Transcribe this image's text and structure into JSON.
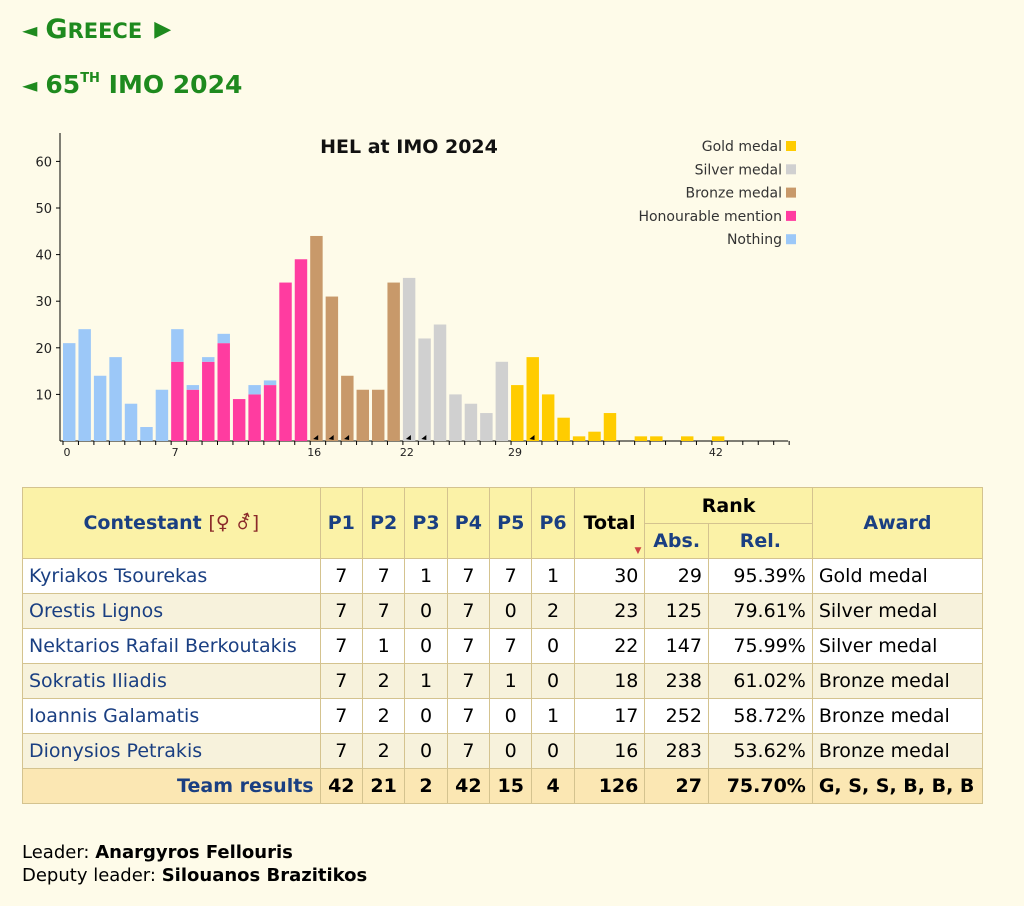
{
  "nav": {
    "country_arrow_left": "◄",
    "country_first": "G",
    "country_rest": "reece",
    "country_arrow_right": "▶",
    "olympiad_arrow_left": "◄",
    "olympiad_ordinal": "65",
    "olympiad_suffix": "th",
    "olympiad_name": "IMO 2024"
  },
  "chart_data": {
    "type": "bar",
    "title": "HEL at IMO 2024",
    "xlabel": "",
    "ylabel": "",
    "x_tick_labels": [
      "0",
      "7",
      "16",
      "22",
      "29",
      "42"
    ],
    "y_tick_labels": [
      "10",
      "20",
      "30",
      "40",
      "50",
      "60"
    ],
    "xlim": [
      0,
      47
    ],
    "ylim": [
      0,
      63
    ],
    "legend_position": "top-right",
    "legend": [
      {
        "name": "Gold medal",
        "color": "#ffcc00"
      },
      {
        "name": "Silver medal",
        "color": "#d0d0d0"
      },
      {
        "name": "Bronze medal",
        "color": "#c8996a"
      },
      {
        "name": "Honourable mention",
        "color": "#ff3ca0"
      },
      {
        "name": "Nothing",
        "color": "#9cc8f8"
      }
    ],
    "colors": {
      "gold": "#ffcc00",
      "silver": "#d0d0d0",
      "bronze": "#c8996a",
      "hm": "#ff3ca0",
      "nothing": "#9cc8f8"
    },
    "bars": [
      {
        "x": 0,
        "segments": [
          {
            "cat": "nothing",
            "v": 21
          }
        ]
      },
      {
        "x": 1,
        "segments": [
          {
            "cat": "nothing",
            "v": 24
          }
        ]
      },
      {
        "x": 2,
        "segments": [
          {
            "cat": "nothing",
            "v": 14
          }
        ]
      },
      {
        "x": 3,
        "segments": [
          {
            "cat": "nothing",
            "v": 18
          }
        ]
      },
      {
        "x": 4,
        "segments": [
          {
            "cat": "nothing",
            "v": 8
          }
        ]
      },
      {
        "x": 5,
        "segments": [
          {
            "cat": "nothing",
            "v": 3
          }
        ]
      },
      {
        "x": 6,
        "segments": [
          {
            "cat": "nothing",
            "v": 11
          }
        ]
      },
      {
        "x": 7,
        "segments": [
          {
            "cat": "hm",
            "v": 17
          },
          {
            "cat": "nothing",
            "v": 7
          }
        ]
      },
      {
        "x": 8,
        "segments": [
          {
            "cat": "hm",
            "v": 11
          },
          {
            "cat": "nothing",
            "v": 1
          }
        ]
      },
      {
        "x": 9,
        "segments": [
          {
            "cat": "hm",
            "v": 17
          },
          {
            "cat": "nothing",
            "v": 1
          }
        ]
      },
      {
        "x": 10,
        "segments": [
          {
            "cat": "hm",
            "v": 21
          },
          {
            "cat": "nothing",
            "v": 2
          }
        ]
      },
      {
        "x": 11,
        "segments": [
          {
            "cat": "hm",
            "v": 9
          }
        ]
      },
      {
        "x": 12,
        "segments": [
          {
            "cat": "hm",
            "v": 10
          },
          {
            "cat": "nothing",
            "v": 2
          }
        ]
      },
      {
        "x": 13,
        "segments": [
          {
            "cat": "hm",
            "v": 12
          },
          {
            "cat": "nothing",
            "v": 1
          }
        ]
      },
      {
        "x": 14,
        "segments": [
          {
            "cat": "hm",
            "v": 34
          }
        ]
      },
      {
        "x": 15,
        "segments": [
          {
            "cat": "hm",
            "v": 39
          }
        ]
      },
      {
        "x": 16,
        "segments": [
          {
            "cat": "bronze",
            "v": 44
          }
        ]
      },
      {
        "x": 17,
        "segments": [
          {
            "cat": "bronze",
            "v": 31
          }
        ]
      },
      {
        "x": 18,
        "segments": [
          {
            "cat": "bronze",
            "v": 14
          }
        ]
      },
      {
        "x": 19,
        "segments": [
          {
            "cat": "bronze",
            "v": 11
          }
        ]
      },
      {
        "x": 20,
        "segments": [
          {
            "cat": "bronze",
            "v": 11
          }
        ]
      },
      {
        "x": 21,
        "segments": [
          {
            "cat": "bronze",
            "v": 34
          }
        ]
      },
      {
        "x": 22,
        "segments": [
          {
            "cat": "silver",
            "v": 35
          }
        ]
      },
      {
        "x": 23,
        "segments": [
          {
            "cat": "silver",
            "v": 22
          }
        ]
      },
      {
        "x": 24,
        "segments": [
          {
            "cat": "silver",
            "v": 25
          }
        ]
      },
      {
        "x": 25,
        "segments": [
          {
            "cat": "silver",
            "v": 10
          }
        ]
      },
      {
        "x": 26,
        "segments": [
          {
            "cat": "silver",
            "v": 8
          }
        ]
      },
      {
        "x": 27,
        "segments": [
          {
            "cat": "silver",
            "v": 6
          }
        ]
      },
      {
        "x": 28,
        "segments": [
          {
            "cat": "silver",
            "v": 17
          }
        ]
      },
      {
        "x": 29,
        "segments": [
          {
            "cat": "gold",
            "v": 12
          }
        ]
      },
      {
        "x": 30,
        "segments": [
          {
            "cat": "gold",
            "v": 18
          }
        ]
      },
      {
        "x": 31,
        "segments": [
          {
            "cat": "gold",
            "v": 10
          }
        ]
      },
      {
        "x": 32,
        "segments": [
          {
            "cat": "gold",
            "v": 5
          }
        ]
      },
      {
        "x": 33,
        "segments": [
          {
            "cat": "gold",
            "v": 1
          }
        ]
      },
      {
        "x": 34,
        "segments": [
          {
            "cat": "gold",
            "v": 2
          }
        ]
      },
      {
        "x": 35,
        "segments": [
          {
            "cat": "gold",
            "v": 6
          }
        ]
      },
      {
        "x": 37,
        "segments": [
          {
            "cat": "gold",
            "v": 1
          }
        ]
      },
      {
        "x": 38,
        "segments": [
          {
            "cat": "gold",
            "v": 1
          }
        ]
      },
      {
        "x": 40,
        "segments": [
          {
            "cat": "gold",
            "v": 1
          }
        ]
      },
      {
        "x": 42,
        "segments": [
          {
            "cat": "gold",
            "v": 1
          }
        ]
      }
    ],
    "team_markers_x": [
      16,
      17,
      18,
      22,
      23,
      30
    ]
  },
  "table": {
    "header": {
      "contestant": "Contestant",
      "gender_open": "[",
      "gender_symbols": "♀ ⚦",
      "gender_close": "]",
      "problems": [
        "P1",
        "P2",
        "P3",
        "P4",
        "P5",
        "P6"
      ],
      "total": "Total",
      "sort_indicator": "▼",
      "rank": "Rank",
      "abs": "Abs.",
      "rel": "Rel.",
      "award": "Award"
    },
    "rows": [
      {
        "name": "Kyriakos Tsourekas",
        "p": [
          "7",
          "7",
          "1",
          "7",
          "7",
          "1"
        ],
        "total": "30",
        "abs": "29",
        "rel": "95.39%",
        "award": "Gold medal"
      },
      {
        "name": "Orestis Lignos",
        "p": [
          "7",
          "7",
          "0",
          "7",
          "0",
          "2"
        ],
        "total": "23",
        "abs": "125",
        "rel": "79.61%",
        "award": "Silver medal"
      },
      {
        "name": "Nektarios Rafail Berkoutakis",
        "p": [
          "7",
          "1",
          "0",
          "7",
          "7",
          "0"
        ],
        "total": "22",
        "abs": "147",
        "rel": "75.99%",
        "award": "Silver medal"
      },
      {
        "name": "Sokratis Iliadis",
        "p": [
          "7",
          "2",
          "1",
          "7",
          "1",
          "0"
        ],
        "total": "18",
        "abs": "238",
        "rel": "61.02%",
        "award": "Bronze medal"
      },
      {
        "name": "Ioannis Galamatis",
        "p": [
          "7",
          "2",
          "0",
          "7",
          "0",
          "1"
        ],
        "total": "17",
        "abs": "252",
        "rel": "58.72%",
        "award": "Bronze medal"
      },
      {
        "name": "Dionysios Petrakis",
        "p": [
          "7",
          "2",
          "0",
          "7",
          "0",
          "0"
        ],
        "total": "16",
        "abs": "283",
        "rel": "53.62%",
        "award": "Bronze medal"
      }
    ],
    "team": {
      "label": "Team results",
      "p": [
        "42",
        "21",
        "2",
        "42",
        "15",
        "4"
      ],
      "total": "126",
      "abs": "27",
      "rel": "75.70%",
      "awards": "G, S, S, B, B, B"
    }
  },
  "leaders": {
    "leader_label": "Leader:",
    "leader_name": "Anargyros Fellouris",
    "deputy_label": "Deputy leader:",
    "deputy_name": "Silouanos Brazitikos"
  }
}
